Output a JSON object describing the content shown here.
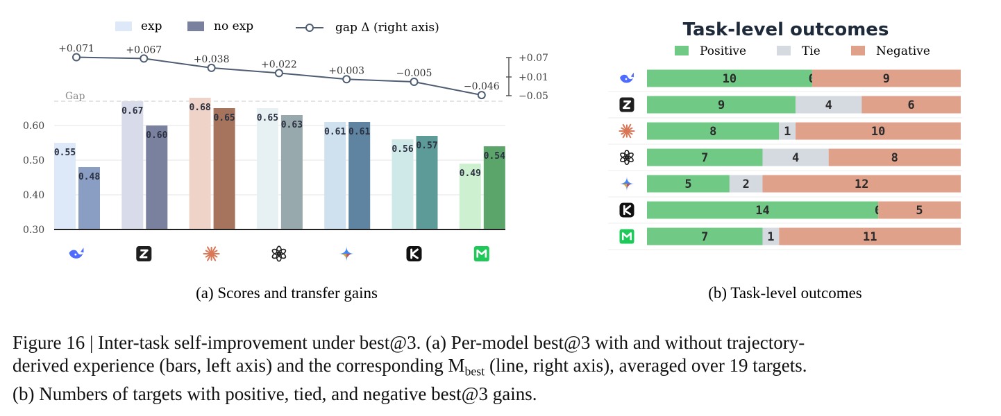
{
  "panel_a": {
    "legend": {
      "exp": "exp",
      "no_exp": "no exp",
      "gap": "gap Δ (right axis)"
    },
    "gap_label": "Gap",
    "caption": "(a) Scores and transfer gains",
    "right_axis_ticks": [
      "+0.07",
      "+0.01",
      "−0.05"
    ],
    "gap_labels": [
      "+0.071",
      "+0.067",
      "+0.038",
      "+0.022",
      "+0.003",
      "−0.005",
      "−0.046"
    ],
    "bar_labels_exp": [
      "0.55",
      "0.67",
      "0.68",
      "0.65",
      "0.61",
      "0.56",
      "0.49"
    ],
    "bar_labels_noexp": [
      "0.48",
      "0.60",
      "0.65",
      "0.63",
      "0.61",
      "0.57",
      "0.54"
    ]
  },
  "panel_b": {
    "title": "Task-level outcomes",
    "caption": "(b) Task-level outcomes",
    "legend": [
      "Positive",
      "Tie",
      "Negative"
    ]
  },
  "figure_caption": {
    "line1": "Figure 16 | Inter-task self-improvement under best@3. (a) Per-model best@3 with and without trajectory-",
    "line2_a": "derived experience (bars, left axis) and the corresponding M",
    "line2_sub": "best",
    "line2_b": " (line, right axis), averaged over 19 targets.",
    "line3": "(b) Numbers of targets with positive, tied, and negative best@3 gains."
  },
  "models": [
    {
      "icon": "deepseek-whale-icon",
      "color": "#4d6bfe"
    },
    {
      "icon": "zhipu-z-icon",
      "color": "#1f1f1f"
    },
    {
      "icon": "claude-asterisk-icon",
      "color": "#d97757"
    },
    {
      "icon": "openai-knot-icon",
      "color": "#1f1f1f"
    },
    {
      "icon": "gemini-sparkle-icon",
      "color": "#4285f4"
    },
    {
      "icon": "kimi-k-icon",
      "color": "#111111"
    },
    {
      "icon": "minimax-m-icon",
      "color": "#1ec95a"
    }
  ],
  "colors": {
    "positive": "#70c985",
    "tie": "#d5dae1",
    "negative": "#e0a18a",
    "gap_line": "#4e5d72"
  },
  "chart_data": [
    {
      "type": "bar",
      "categories": [
        "deepseek",
        "zhipu",
        "claude",
        "openai",
        "gemini",
        "kimi",
        "minimax"
      ],
      "series": [
        {
          "name": "exp",
          "values": [
            0.55,
            0.67,
            0.68,
            0.65,
            0.61,
            0.56,
            0.49
          ],
          "colors": [
            "#dde9f9",
            "#d8dcea",
            "#efd3c8",
            "#e7f0f3",
            "#cfe0ee",
            "#cfe9e8",
            "#cdf0d1"
          ]
        },
        {
          "name": "no exp",
          "values": [
            0.48,
            0.6,
            0.65,
            0.63,
            0.61,
            0.57,
            0.54
          ],
          "colors": [
            "#8a9ec4",
            "#7a819f",
            "#a6735c",
            "#98a9ad",
            "#5f84a2",
            "#5c9b97",
            "#5ba46a"
          ]
        }
      ],
      "line_series": {
        "name": "gap Δ (right axis)",
        "values": [
          0.071,
          0.067,
          0.038,
          0.022,
          0.003,
          -0.005,
          -0.046
        ]
      },
      "y_ticks": [
        "0.30",
        "0.40",
        "0.50",
        "0.60"
      ],
      "ylim": [
        0.3,
        0.67
      ],
      "y2lim": [
        -0.05,
        0.07
      ],
      "grid": true
    },
    {
      "type": "bar",
      "orientation": "horizontal-stacked",
      "title": "Task-level outcomes",
      "categories": [
        "deepseek",
        "zhipu",
        "claude",
        "openai",
        "gemini",
        "kimi",
        "minimax"
      ],
      "series": [
        {
          "name": "Positive",
          "values": [
            10,
            9,
            8,
            7,
            5,
            14,
            7
          ]
        },
        {
          "name": "Tie",
          "values": [
            0,
            4,
            1,
            4,
            2,
            0,
            1
          ]
        },
        {
          "name": "Negative",
          "values": [
            9,
            6,
            10,
            8,
            12,
            5,
            11
          ]
        }
      ],
      "total": 19
    }
  ]
}
